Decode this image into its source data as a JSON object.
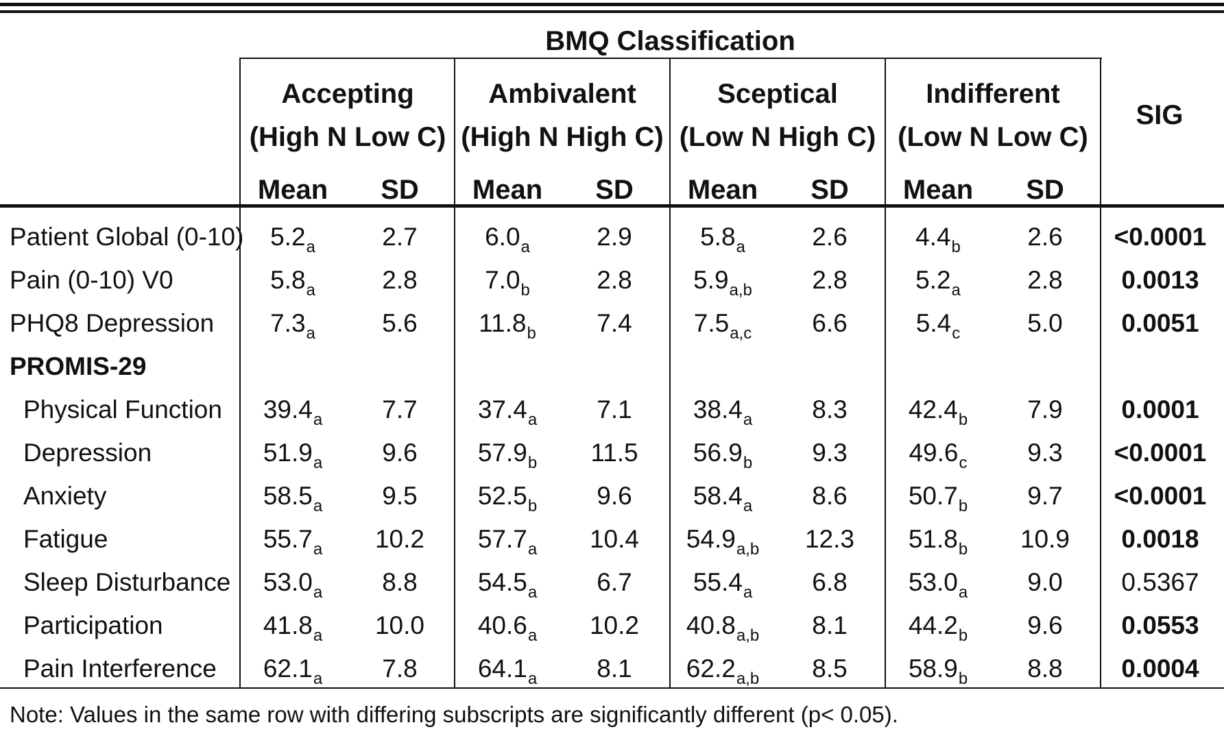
{
  "title": "BMQ Classification",
  "groups": [
    {
      "name": "Accepting",
      "desc": "(High N Low C)"
    },
    {
      "name": "Ambivalent",
      "desc": "(High N High C)"
    },
    {
      "name": "Sceptical",
      "desc": "(Low N High C)"
    },
    {
      "name": "Indifferent",
      "desc": "(Low N Low C)"
    }
  ],
  "mean_label": "Mean",
  "sd_label": "SD",
  "sig_label": "SIG",
  "rows": [
    {
      "label": "Patient Global (0-10)",
      "indent": false,
      "header": false,
      "sig": "<0.0001",
      "sig_bold": true,
      "cells": [
        {
          "mean": "5.2",
          "sub": "a",
          "sd": "2.7"
        },
        {
          "mean": "6.0",
          "sub": "a",
          "sd": "2.9"
        },
        {
          "mean": "5.8",
          "sub": "a",
          "sd": "2.6"
        },
        {
          "mean": "4.4",
          "sub": "b",
          "sd": "2.6"
        }
      ]
    },
    {
      "label": "Pain (0-10) V0",
      "indent": false,
      "header": false,
      "sig": "0.0013",
      "sig_bold": true,
      "cells": [
        {
          "mean": "5.8",
          "sub": "a",
          "sd": "2.8"
        },
        {
          "mean": "7.0",
          "sub": "b",
          "sd": "2.8"
        },
        {
          "mean": "5.9",
          "sub": "a,b",
          "sd": "2.8"
        },
        {
          "mean": "5.2",
          "sub": "a",
          "sd": "2.8"
        }
      ]
    },
    {
      "label": "PHQ8 Depression",
      "indent": false,
      "header": false,
      "sig": "0.0051",
      "sig_bold": true,
      "cells": [
        {
          "mean": "7.3",
          "sub": "a",
          "sd": "5.6"
        },
        {
          "mean": "11.8",
          "sub": "b",
          "sd": "7.4"
        },
        {
          "mean": "7.5",
          "sub": "a,c",
          "sd": "6.6"
        },
        {
          "mean": "5.4",
          "sub": "c",
          "sd": "5.0"
        }
      ]
    },
    {
      "label": "PROMIS-29",
      "indent": false,
      "header": true,
      "sig": "",
      "sig_bold": false,
      "cells": []
    },
    {
      "label": "Physical Function",
      "indent": true,
      "header": false,
      "sig": "0.0001",
      "sig_bold": true,
      "cells": [
        {
          "mean": "39.4",
          "sub": "a",
          "sd": "7.7"
        },
        {
          "mean": "37.4",
          "sub": "a",
          "sd": "7.1"
        },
        {
          "mean": "38.4",
          "sub": "a",
          "sd": "8.3"
        },
        {
          "mean": "42.4",
          "sub": "b",
          "sd": "7.9"
        }
      ]
    },
    {
      "label": "Depression",
      "indent": true,
      "header": false,
      "sig": "<0.0001",
      "sig_bold": true,
      "cells": [
        {
          "mean": "51.9",
          "sub": "a",
          "sd": "9.6"
        },
        {
          "mean": "57.9",
          "sub": "b",
          "sd": "11.5"
        },
        {
          "mean": "56.9",
          "sub": "b",
          "sd": "9.3"
        },
        {
          "mean": "49.6",
          "sub": "c",
          "sd": "9.3"
        }
      ]
    },
    {
      "label": "Anxiety",
      "indent": true,
      "header": false,
      "sig": "<0.0001",
      "sig_bold": true,
      "cells": [
        {
          "mean": "58.5",
          "sub": "a",
          "sd": "9.5"
        },
        {
          "mean": "52.5",
          "sub": "b",
          "sd": "9.6"
        },
        {
          "mean": "58.4",
          "sub": "a",
          "sd": "8.6"
        },
        {
          "mean": "50.7",
          "sub": "b",
          "sd": "9.7"
        }
      ]
    },
    {
      "label": "Fatigue",
      "indent": true,
      "header": false,
      "sig": "0.0018",
      "sig_bold": true,
      "cells": [
        {
          "mean": "55.7",
          "sub": "a",
          "sd": "10.2"
        },
        {
          "mean": "57.7",
          "sub": "a",
          "sd": "10.4"
        },
        {
          "mean": "54.9",
          "sub": "a,b",
          "sd": "12.3"
        },
        {
          "mean": "51.8",
          "sub": "b",
          "sd": "10.9"
        }
      ]
    },
    {
      "label": "Sleep Disturbance",
      "indent": true,
      "header": false,
      "sig": "0.5367",
      "sig_bold": false,
      "cells": [
        {
          "mean": "53.0",
          "sub": "a",
          "sd": "8.8"
        },
        {
          "mean": "54.5",
          "sub": "a",
          "sd": "6.7"
        },
        {
          "mean": "55.4",
          "sub": "a",
          "sd": "6.8"
        },
        {
          "mean": "53.0",
          "sub": "a",
          "sd": "9.0"
        }
      ]
    },
    {
      "label": "Participation",
      "indent": true,
      "header": false,
      "sig": "0.0553",
      "sig_bold": true,
      "cells": [
        {
          "mean": "41.8",
          "sub": "a",
          "sd": "10.0"
        },
        {
          "mean": "40.6",
          "sub": "a",
          "sd": "10.2"
        },
        {
          "mean": "40.8",
          "sub": "a,b",
          "sd": "8.1"
        },
        {
          "mean": "44.2",
          "sub": "b",
          "sd": "9.6"
        }
      ]
    },
    {
      "label": "Pain Interference",
      "indent": true,
      "header": false,
      "sig": "0.0004",
      "sig_bold": true,
      "cells": [
        {
          "mean": "62.1",
          "sub": "a",
          "sd": "7.8"
        },
        {
          "mean": "64.1",
          "sub": "a",
          "sd": "8.1"
        },
        {
          "mean": "62.2",
          "sub": "a,b",
          "sd": "8.5"
        },
        {
          "mean": "58.9",
          "sub": "b",
          "sd": "8.8"
        }
      ]
    }
  ],
  "note": "Note: Values in the same row with differing subscripts are significantly different (p< 0.05)."
}
